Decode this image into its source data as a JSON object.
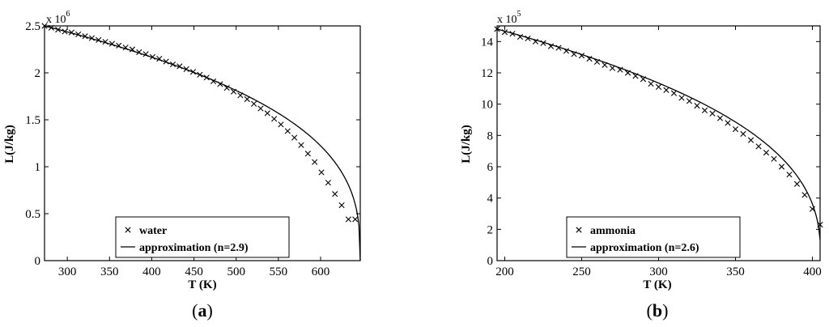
{
  "chart_data": [
    {
      "type": "line",
      "panel_label": {
        "open": "(",
        "letter": "a",
        "close": ")"
      },
      "xlabel": "T (K)",
      "ylabel": "L(J/kg)",
      "y_multiplier": {
        "base": "x 10",
        "exponent": "6"
      },
      "xlim": [
        273,
        647
      ],
      "ylim": [
        0,
        2.5
      ],
      "xticks": [
        300,
        350,
        400,
        450,
        500,
        550,
        600
      ],
      "xtick_labels": [
        "300",
        "350",
        "400",
        "450",
        "500",
        "550",
        "600"
      ],
      "yticks": [
        0,
        0.5,
        1,
        1.5,
        2,
        2.5
      ],
      "ytick_labels": [
        "0",
        "0.5",
        "1",
        "1.5",
        "2",
        "2.5"
      ],
      "grid": false,
      "legend_position": "bottom-center",
      "series": [
        {
          "name": "water",
          "style": "markers",
          "marker": "x",
          "x": [
            273,
            281,
            289,
            297,
            305,
            313,
            321,
            329,
            337,
            345,
            353,
            361,
            369,
            377,
            385,
            393,
            401,
            409,
            417,
            425,
            433,
            441,
            449,
            457,
            465,
            473,
            481,
            489,
            497,
            505,
            513,
            521,
            529,
            537,
            545,
            553,
            561,
            569,
            577,
            585,
            593,
            601,
            609,
            617,
            625,
            633,
            641
          ],
          "y": [
            2.5,
            2.48,
            2.46,
            2.44,
            2.43,
            2.41,
            2.39,
            2.37,
            2.35,
            2.33,
            2.31,
            2.29,
            2.27,
            2.25,
            2.22,
            2.2,
            2.17,
            2.15,
            2.12,
            2.09,
            2.07,
            2.04,
            2.01,
            1.98,
            1.95,
            1.91,
            1.88,
            1.84,
            1.8,
            1.76,
            1.72,
            1.67,
            1.62,
            1.57,
            1.51,
            1.45,
            1.38,
            1.31,
            1.23,
            1.14,
            1.05,
            0.94,
            0.83,
            0.71,
            0.59,
            0.44,
            0.44
          ]
        },
        {
          "name": "approximation (n=2.9)",
          "style": "solid",
          "formula": {
            "L0": 2.5,
            "Tc": 647,
            "Tref": 273,
            "n": 2.9
          },
          "x_range": [
            273,
            647
          ]
        }
      ]
    },
    {
      "type": "line",
      "panel_label": {
        "open": "(",
        "letter": "b",
        "close": ")"
      },
      "xlabel": "T (K)",
      "ylabel": "L(J/kg)",
      "y_multiplier": {
        "base": "x 10",
        "exponent": "5"
      },
      "xlim": [
        195,
        405
      ],
      "ylim": [
        0,
        15
      ],
      "xticks": [
        200,
        250,
        300,
        350,
        400
      ],
      "xtick_labels": [
        "200",
        "250",
        "300",
        "350",
        "400"
      ],
      "yticks": [
        0,
        2,
        4,
        6,
        8,
        10,
        12,
        14
      ],
      "ytick_labels": [
        "0",
        "2",
        "4",
        "6",
        "8",
        "10",
        "12",
        "14"
      ],
      "grid": false,
      "legend_position": "bottom-center",
      "series": [
        {
          "name": "ammonia",
          "style": "markers",
          "marker": "x",
          "x": [
            195,
            200,
            205,
            210,
            215,
            220,
            225,
            230,
            235,
            240,
            245,
            250,
            255,
            260,
            265,
            270,
            275,
            280,
            285,
            290,
            295,
            300,
            305,
            310,
            315,
            320,
            325,
            330,
            335,
            340,
            345,
            350,
            355,
            360,
            365,
            370,
            375,
            380,
            385,
            390,
            395,
            400,
            405
          ],
          "y": [
            14.8,
            14.6,
            14.5,
            14.3,
            14.2,
            14.0,
            13.9,
            13.7,
            13.6,
            13.4,
            13.2,
            13.1,
            12.9,
            12.7,
            12.5,
            12.3,
            12.2,
            12.0,
            11.8,
            11.6,
            11.3,
            11.1,
            10.9,
            10.7,
            10.4,
            10.2,
            9.9,
            9.6,
            9.4,
            9.1,
            8.8,
            8.4,
            8.1,
            7.7,
            7.3,
            6.9,
            6.5,
            6.0,
            5.5,
            4.9,
            4.2,
            3.3,
            2.3
          ]
        },
        {
          "name": "approximation (n=2.6)",
          "style": "solid",
          "formula": {
            "L0": 14.8,
            "Tc": 405.4,
            "Tref": 195,
            "n": 2.6
          },
          "x_range": [
            195,
            405
          ]
        }
      ]
    }
  ]
}
